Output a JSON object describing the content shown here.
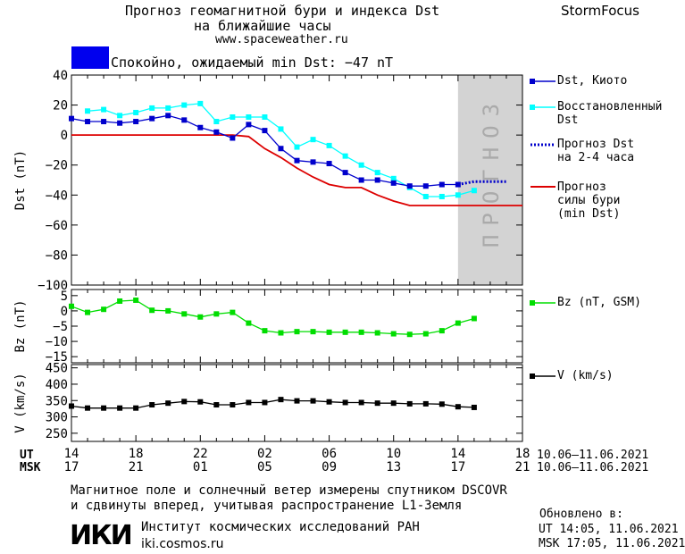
{
  "header": {
    "title_line1": "Прогноз геомагнитной бури и индекса Dst",
    "title_line2": "на ближайшие часы",
    "url": "www.spaceweather.ru",
    "brand": "StormFocus"
  },
  "status": {
    "text": "Спокойно, ожидаемый min Dst: −47 nT",
    "color": "#0000ee"
  },
  "forecast_band_label": "ПРОГНОЗ",
  "colors": {
    "dst_kyoto": "#0000cc",
    "dst_restored": "#00ffff",
    "dst_forecast": "#0000cc",
    "storm_forecast": "#dd0000",
    "bz": "#00dd00",
    "v": "#000000",
    "forecast_band": "#d3d3d3"
  },
  "time_axis": {
    "ut_label": "UT",
    "msk_label": "MSK",
    "ut_ticks": [
      "14",
      "18",
      "22",
      "02",
      "06",
      "10",
      "14",
      "18"
    ],
    "msk_ticks": [
      "17",
      "21",
      "01",
      "05",
      "09",
      "13",
      "17",
      "21"
    ],
    "date_range_ut": "10.06–11.06.2021",
    "date_range_msk": "10.06–11.06.2021"
  },
  "chart_data": [
    {
      "type": "line",
      "panel": "dst",
      "ylabel": "Dst (nT)",
      "ylim": [
        -100,
        40
      ],
      "yticks": [
        "40",
        "20",
        "0",
        "−20",
        "−40",
        "−60",
        "−80",
        "−100"
      ],
      "x_unit": "hours since 14 UT",
      "xlim": [
        0,
        28
      ],
      "forecast_region": [
        24,
        28
      ],
      "series": [
        {
          "name": "Dst, Киото",
          "x": [
            0,
            1,
            2,
            3,
            4,
            5,
            6,
            7,
            8,
            9,
            10,
            11,
            12,
            13,
            14,
            15,
            16,
            17,
            18,
            19,
            20,
            21,
            22,
            23,
            24
          ],
          "values": [
            11,
            9,
            9,
            8,
            9,
            11,
            13,
            10,
            5,
            2,
            -2,
            7,
            3,
            -9,
            -17,
            -18,
            -19,
            -25,
            -30,
            -30,
            -32,
            -34,
            -34,
            -33,
            -33
          ]
        },
        {
          "name": "Восстановленный Dst",
          "x": [
            1,
            2,
            3,
            4,
            5,
            6,
            7,
            8,
            9,
            10,
            11,
            12,
            13,
            14,
            15,
            16,
            17,
            18,
            19,
            20,
            21,
            22,
            23,
            24,
            25
          ],
          "values": [
            16,
            17,
            13,
            15,
            18,
            18,
            20,
            21,
            9,
            12,
            12,
            12,
            4,
            -8,
            -3,
            -7,
            -14,
            -20,
            -25,
            -29,
            -35,
            -41,
            -41,
            -40,
            -37
          ]
        },
        {
          "name": "Прогноз Dst на 2-4 часа",
          "x": [
            24,
            25,
            26,
            27
          ],
          "values": [
            -33,
            -31,
            -31,
            -31
          ]
        },
        {
          "name": "Прогноз силы бури (min Dst)",
          "x": [
            0,
            10,
            11,
            12,
            13,
            14,
            15,
            16,
            17,
            18,
            19,
            20,
            21,
            28
          ],
          "values": [
            0,
            0,
            -1,
            -9,
            -15,
            -22,
            -28,
            -33,
            -35,
            -35,
            -40,
            -44,
            -47,
            -47
          ]
        }
      ]
    },
    {
      "type": "line",
      "panel": "bz",
      "ylabel": "Bz (nT)",
      "ylim": [
        -17,
        7
      ],
      "yticks": [
        "5",
        "0",
        "−5",
        "−10",
        "−15"
      ],
      "x_unit": "hours since 14 UT",
      "xlim": [
        0,
        28
      ],
      "series": [
        {
          "name": "Bz (nT, GSM)",
          "x": [
            0,
            1,
            2,
            3,
            4,
            5,
            6,
            7,
            8,
            9,
            10,
            11,
            12,
            13,
            14,
            15,
            16,
            17,
            18,
            19,
            20,
            21,
            22,
            23,
            24,
            25
          ],
          "values": [
            1.5,
            -0.5,
            0.5,
            3.2,
            3.5,
            0.2,
            0,
            -1,
            -2,
            -1,
            -0.5,
            -4,
            -6.5,
            -7.2,
            -6.8,
            -6.8,
            -7,
            -7,
            -7,
            -7.2,
            -7.5,
            -7.7,
            -7.5,
            -6.5,
            -4,
            -2.5
          ]
        }
      ]
    },
    {
      "type": "line",
      "panel": "v",
      "ylabel": "V (km/s)",
      "ylim": [
        225,
        460
      ],
      "yticks": [
        "450",
        "400",
        "350",
        "300",
        "250"
      ],
      "x_unit": "hours since 14 UT",
      "xlim": [
        0,
        28
      ],
      "series": [
        {
          "name": "V (km/s)",
          "x": [
            0,
            1,
            2,
            3,
            4,
            5,
            6,
            7,
            8,
            9,
            10,
            11,
            12,
            13,
            14,
            15,
            16,
            17,
            18,
            19,
            20,
            21,
            22,
            23,
            24,
            25
          ],
          "values": [
            333,
            327,
            327,
            327,
            327,
            337,
            342,
            347,
            346,
            337,
            337,
            344,
            344,
            353,
            349,
            349,
            346,
            344,
            344,
            342,
            342,
            340,
            340,
            339,
            331,
            329
          ]
        }
      ]
    }
  ],
  "legend": {
    "dst_kyoto": "Dst, Киото",
    "restored_1": "Восстановленный",
    "restored_2": "Dst",
    "forecast_1": "Прогноз Dst",
    "forecast_2": "на 2-4 часа",
    "storm_1": "Прогноз",
    "storm_2": "силы бури",
    "storm_3": "(min Dst)",
    "bz": "Bz (nT, GSM)",
    "v": "V (km/s)"
  },
  "footer": {
    "note_1": "Магнитное поле и солнечный ветер измерены спутником DSCOVR",
    "note_2": "и сдвинуты вперед, учитывая распространение L1-Земля",
    "updated_label": "Обновлено в:",
    "updated_ut": "UT  14:05, 11.06.2021",
    "updated_msk": "MSK 17:05, 11.06.2021",
    "logo": "ИКИ",
    "institute": "Институт космических исследований РАН",
    "institute_url": "iki.cosmos.ru"
  }
}
